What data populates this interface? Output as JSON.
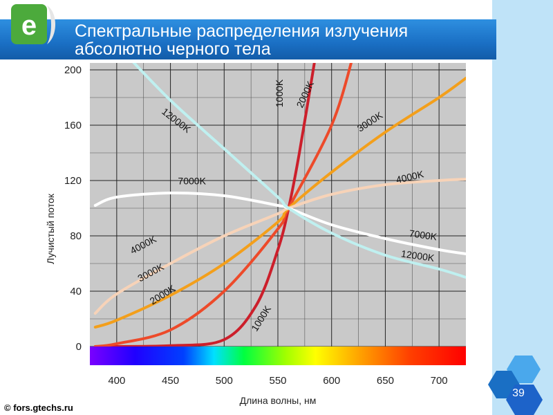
{
  "slide": {
    "title_line1": "Спектральные распределения излучения",
    "title_line2": "абсолютно черного тела",
    "page_number": "39",
    "copyright": "© fors.gtechs.ru",
    "logo_text": "е"
  },
  "chart_data": {
    "type": "line",
    "xlabel": "Длина волны, нм",
    "ylabel": "Лучистый поток",
    "xlim": [
      375,
      725
    ],
    "ylim": [
      0,
      205
    ],
    "x_ticks": [
      400,
      450,
      500,
      550,
      600,
      650,
      700
    ],
    "y_ticks": [
      0,
      40,
      80,
      120,
      160,
      200
    ],
    "grid": true,
    "plot_background": "#c9c9c9",
    "spectrum_bar": true,
    "series": [
      {
        "name": "1000K",
        "color": "#cc1f2b",
        "x": [
          380,
          450,
          500,
          530,
          550,
          560,
          570,
          585
        ],
        "y": [
          0,
          0.6,
          5,
          30,
          70,
          100,
          140,
          210
        ]
      },
      {
        "name": "2000K",
        "color": "#ed4a2a",
        "x": [
          380,
          400,
          450,
          500,
          550,
          560,
          600,
          620
        ],
        "y": [
          0,
          2,
          12,
          40,
          85,
          100,
          160,
          210
        ]
      },
      {
        "name": "3000K",
        "color": "#f39f1b",
        "x": [
          380,
          400,
          450,
          500,
          550,
          560,
          600,
          650,
          700,
          725
        ],
        "y": [
          14,
          19,
          37,
          60,
          90,
          100,
          126,
          155,
          180,
          194
        ]
      },
      {
        "name": "4000K",
        "color": "#f7d3b8",
        "x": [
          380,
          400,
          450,
          500,
          550,
          560,
          600,
          650,
          700,
          725
        ],
        "y": [
          24,
          38,
          60,
          80,
          96,
          100,
          110,
          117,
          120,
          121
        ]
      },
      {
        "name": "7000K",
        "color": "#ffffff",
        "x": [
          380,
          400,
          450,
          500,
          550,
          560,
          600,
          650,
          700,
          725
        ],
        "y": [
          102,
          108,
          111,
          109,
          102,
          100,
          88,
          78,
          70,
          67
        ]
      },
      {
        "name": "12000K",
        "color": "#bff0f0",
        "x": [
          410,
          450,
          500,
          550,
          560,
          600,
          650,
          700,
          725
        ],
        "y": [
          210,
          178,
          143,
          108,
          100,
          82,
          66,
          56,
          50
        ]
      }
    ],
    "annotations": [
      {
        "text": "12000K",
        "x": 455,
        "y": 163,
        "rotate": 38
      },
      {
        "text": "7000K",
        "x": 470,
        "y": 119,
        "rotate": 0
      },
      {
        "text": "1000K",
        "x": 552,
        "y": 183,
        "rotate": -90
      },
      {
        "text": "2000K",
        "x": 576,
        "y": 182,
        "rotate": -65
      },
      {
        "text": "3000K",
        "x": 636,
        "y": 162,
        "rotate": -33
      },
      {
        "text": "4000K",
        "x": 673,
        "y": 122,
        "rotate": -13
      },
      {
        "text": "7000K",
        "x": 685,
        "y": 80,
        "rotate": 8
      },
      {
        "text": "12000K",
        "x": 680,
        "y": 65,
        "rotate": 8
      },
      {
        "text": "4000K",
        "x": 425,
        "y": 73,
        "rotate": -28
      },
      {
        "text": "3000K",
        "x": 432,
        "y": 53,
        "rotate": -28
      },
      {
        "text": "2000K",
        "x": 443,
        "y": 37,
        "rotate": -32
      },
      {
        "text": "1000K",
        "x": 535,
        "y": 20,
        "rotate": -58
      }
    ]
  }
}
